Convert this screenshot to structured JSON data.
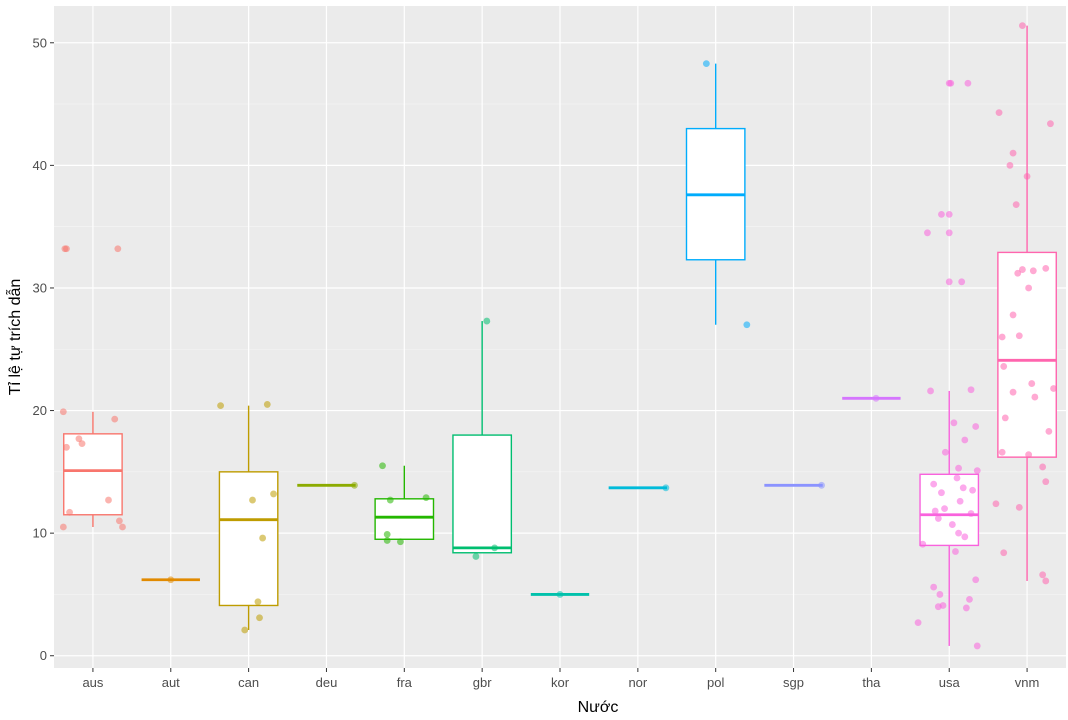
{
  "chart_data": {
    "type": "boxplot",
    "xlabel": "Nước",
    "ylabel": "Tỉ lệ tự trích dẫn",
    "ylim": [
      -1,
      53
    ],
    "yticks": [
      0,
      10,
      20,
      30,
      40,
      50
    ],
    "grid": true,
    "legend": "none",
    "categories": [
      "aus",
      "aut",
      "can",
      "deu",
      "fra",
      "gbr",
      "kor",
      "nor",
      "pol",
      "sgp",
      "tha",
      "usa",
      "vnm"
    ],
    "series": [
      {
        "category": "aus",
        "color": "#F8766D",
        "box": {
          "whisker_low": 10.5,
          "q1": 11.5,
          "median": 15.1,
          "q3": 18.1,
          "whisker_high": 19.9
        },
        "points": [
          [
            -0.38,
            10.5
          ],
          [
            -0.34,
            17.0
          ],
          [
            -0.3,
            11.7
          ],
          [
            -0.38,
            19.9
          ],
          [
            -0.18,
            17.7
          ],
          [
            -0.14,
            17.3
          ],
          [
            0.2,
            12.7
          ],
          [
            0.28,
            19.3
          ],
          [
            0.34,
            11.0
          ],
          [
            0.38,
            10.5
          ],
          [
            -0.36,
            33.2
          ],
          [
            -0.34,
            33.2
          ],
          [
            0.32,
            33.2
          ]
        ]
      },
      {
        "category": "aut",
        "color": "#E18A00",
        "box": {
          "whisker_low": 6.2,
          "q1": 6.2,
          "median": 6.2,
          "q3": 6.2,
          "whisker_high": 6.2
        },
        "points": [
          [
            0.0,
            6.2
          ]
        ]
      },
      {
        "category": "can",
        "color": "#BE9C00",
        "box": {
          "whisker_low": 2.1,
          "q1": 4.1,
          "median": 11.1,
          "q3": 15.0,
          "whisker_high": 20.4
        },
        "points": [
          [
            -0.36,
            20.4
          ],
          [
            0.24,
            20.5
          ],
          [
            0.05,
            12.7
          ],
          [
            0.32,
            13.2
          ],
          [
            0.18,
            9.6
          ],
          [
            0.12,
            4.4
          ],
          [
            0.14,
            3.1
          ],
          [
            -0.05,
            2.1
          ]
        ]
      },
      {
        "category": "deu",
        "color": "#8CAB00",
        "box": {
          "whisker_low": 13.9,
          "q1": 13.9,
          "median": 13.9,
          "q3": 13.9,
          "whisker_high": 13.9
        },
        "points": [
          [
            0.36,
            13.9
          ]
        ]
      },
      {
        "category": "fra",
        "color": "#24B700",
        "box": {
          "whisker_low": 9.5,
          "q1": 9.5,
          "median": 11.3,
          "q3": 12.8,
          "whisker_high": 15.5
        },
        "points": [
          [
            -0.28,
            15.5
          ],
          [
            -0.18,
            12.7
          ],
          [
            0.28,
            12.9
          ],
          [
            -0.22,
            9.9
          ],
          [
            -0.22,
            9.4
          ],
          [
            -0.05,
            9.3
          ]
        ]
      },
      {
        "category": "gbr",
        "color": "#00BE70",
        "box": {
          "whisker_low": 8.4,
          "q1": 8.4,
          "median": 8.8,
          "q3": 18.0,
          "whisker_high": 27.3
        },
        "points": [
          [
            0.06,
            27.3
          ],
          [
            -0.08,
            8.1
          ],
          [
            0.16,
            8.8
          ]
        ]
      },
      {
        "category": "kor",
        "color": "#00C1AB",
        "box": {
          "whisker_low": 5.0,
          "q1": 5.0,
          "median": 5.0,
          "q3": 5.0,
          "whisker_high": 5.0
        },
        "points": [
          [
            0.0,
            5.0
          ]
        ]
      },
      {
        "category": "nor",
        "color": "#00BBDA",
        "box": {
          "whisker_low": 13.7,
          "q1": 13.7,
          "median": 13.7,
          "q3": 13.7,
          "whisker_high": 13.7
        },
        "points": [
          [
            0.36,
            13.7
          ]
        ]
      },
      {
        "category": "pol",
        "color": "#00ACFC",
        "box": {
          "whisker_low": 27.0,
          "q1": 32.3,
          "median": 37.6,
          "q3": 43.0,
          "whisker_high": 48.3
        },
        "points": [
          [
            -0.12,
            48.3
          ],
          [
            0.4,
            27.0
          ]
        ]
      },
      {
        "category": "sgp",
        "color": "#8B93FF",
        "box": {
          "whisker_low": 13.9,
          "q1": 13.9,
          "median": 13.9,
          "q3": 13.9,
          "whisker_high": 13.9
        },
        "points": [
          [
            0.36,
            13.9
          ]
        ]
      },
      {
        "category": "tha",
        "color": "#D575FE",
        "box": {
          "whisker_low": 21.0,
          "q1": 21.0,
          "median": 21.0,
          "q3": 21.0,
          "whisker_high": 21.0
        },
        "points": [
          [
            0.06,
            21.0
          ]
        ]
      },
      {
        "category": "usa",
        "color": "#F962DD",
        "box": {
          "whisker_low": 0.8,
          "q1": 9.0,
          "median": 11.5,
          "q3": 14.8,
          "whisker_high": 21.6
        },
        "points": [
          [
            0.0,
            46.7
          ],
          [
            0.02,
            46.7
          ],
          [
            0.24,
            46.7
          ],
          [
            -0.1,
            36.0
          ],
          [
            0.0,
            36.0
          ],
          [
            -0.28,
            34.5
          ],
          [
            0.0,
            34.5
          ],
          [
            0.0,
            30.5
          ],
          [
            0.16,
            30.5
          ],
          [
            -0.24,
            21.6
          ],
          [
            0.28,
            21.7
          ],
          [
            0.06,
            19.0
          ],
          [
            0.2,
            17.6
          ],
          [
            0.34,
            18.7
          ],
          [
            -0.05,
            16.6
          ],
          [
            0.12,
            15.3
          ],
          [
            0.36,
            15.1
          ],
          [
            -0.2,
            14.0
          ],
          [
            0.1,
            14.5
          ],
          [
            0.18,
            13.7
          ],
          [
            -0.1,
            13.3
          ],
          [
            0.3,
            13.5
          ],
          [
            -0.18,
            11.8
          ],
          [
            -0.14,
            11.2
          ],
          [
            0.04,
            10.7
          ],
          [
            0.12,
            10.0
          ],
          [
            0.2,
            9.7
          ],
          [
            -0.34,
            9.1
          ],
          [
            0.08,
            8.5
          ],
          [
            0.34,
            6.2
          ],
          [
            -0.2,
            5.6
          ],
          [
            -0.12,
            5.0
          ],
          [
            -0.08,
            4.1
          ],
          [
            -0.14,
            4.0
          ],
          [
            0.26,
            4.6
          ],
          [
            0.22,
            3.9
          ],
          [
            -0.4,
            2.7
          ],
          [
            0.36,
            0.8
          ],
          [
            -0.06,
            12.0
          ],
          [
            0.28,
            11.6
          ],
          [
            0.14,
            12.6
          ]
        ]
      },
      {
        "category": "vnm",
        "color": "#FF65AE",
        "box": {
          "whisker_low": 6.1,
          "q1": 16.2,
          "median": 24.1,
          "q3": 32.9,
          "whisker_high": 51.4
        },
        "points": [
          [
            -0.06,
            51.4
          ],
          [
            -0.36,
            44.3
          ],
          [
            0.3,
            43.4
          ],
          [
            -0.18,
            41.0
          ],
          [
            -0.22,
            40.0
          ],
          [
            0.0,
            39.1
          ],
          [
            -0.14,
            36.8
          ],
          [
            -0.12,
            31.2
          ],
          [
            0.08,
            31.4
          ],
          [
            0.24,
            31.6
          ],
          [
            -0.06,
            31.5
          ],
          [
            0.02,
            30.0
          ],
          [
            -0.18,
            27.8
          ],
          [
            -0.32,
            26.0
          ],
          [
            -0.1,
            26.1
          ],
          [
            -0.3,
            23.6
          ],
          [
            0.06,
            22.2
          ],
          [
            0.1,
            21.1
          ],
          [
            0.34,
            21.8
          ],
          [
            -0.18,
            21.5
          ],
          [
            -0.28,
            19.4
          ],
          [
            0.28,
            18.3
          ],
          [
            -0.32,
            16.6
          ],
          [
            0.02,
            16.4
          ],
          [
            0.2,
            15.4
          ],
          [
            0.24,
            14.2
          ],
          [
            -0.4,
            12.4
          ],
          [
            -0.1,
            12.1
          ],
          [
            -0.3,
            8.4
          ],
          [
            0.2,
            6.6
          ],
          [
            0.24,
            6.1
          ]
        ]
      }
    ]
  }
}
